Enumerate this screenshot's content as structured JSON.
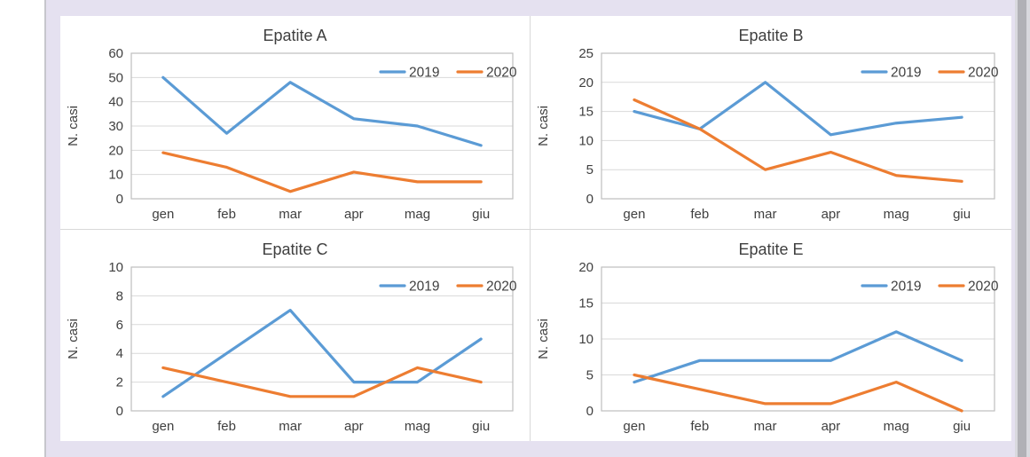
{
  "theme": {
    "panel_bg": "#e5e1f0",
    "cell_bg": "#ffffff",
    "divider_color": "#d9d9d9",
    "grid_color": "#d9d9d9",
    "plot_border_color": "#bfbfbf",
    "text_color": "#404040",
    "title_color": "#3f3f3f",
    "series_colors": {
      "2019": "#5B9BD5",
      "2020": "#ED7D31"
    }
  },
  "chart_data": [
    {
      "type": "line",
      "title": "Epatite A",
      "ylabel": "N. casi",
      "categories": [
        "gen",
        "feb",
        "mar",
        "apr",
        "mag",
        "giu"
      ],
      "ylim": [
        0,
        60
      ],
      "ytick": 10,
      "grid": true,
      "legend_position": "top-right",
      "series": [
        {
          "name": "2019",
          "color": "#5B9BD5",
          "values": [
            50,
            27,
            48,
            33,
            30,
            22
          ]
        },
        {
          "name": "2020",
          "color": "#ED7D31",
          "values": [
            19,
            13,
            3,
            11,
            7,
            7
          ]
        }
      ]
    },
    {
      "type": "line",
      "title": "Epatite B",
      "ylabel": "N. casi",
      "categories": [
        "gen",
        "feb",
        "mar",
        "apr",
        "mag",
        "giu"
      ],
      "ylim": [
        0,
        25
      ],
      "ytick": 5,
      "grid": true,
      "legend_position": "top-right",
      "series": [
        {
          "name": "2019",
          "color": "#5B9BD5",
          "values": [
            15,
            12,
            20,
            11,
            13,
            14
          ]
        },
        {
          "name": "2020",
          "color": "#ED7D31",
          "values": [
            17,
            12,
            5,
            8,
            4,
            3
          ]
        }
      ]
    },
    {
      "type": "line",
      "title": "Epatite C",
      "ylabel": "N. casi",
      "categories": [
        "gen",
        "feb",
        "mar",
        "apr",
        "mag",
        "giu"
      ],
      "ylim": [
        0,
        10
      ],
      "ytick": 2,
      "grid": true,
      "legend_position": "top-right",
      "series": [
        {
          "name": "2019",
          "color": "#5B9BD5",
          "values": [
            1,
            4,
            7,
            2,
            2,
            5
          ]
        },
        {
          "name": "2020",
          "color": "#ED7D31",
          "values": [
            3,
            2,
            1,
            1,
            3,
            2
          ]
        }
      ]
    },
    {
      "type": "line",
      "title": "Epatite E",
      "ylabel": "N. casi",
      "categories": [
        "gen",
        "feb",
        "mar",
        "apr",
        "mag",
        "giu"
      ],
      "ylim": [
        0,
        20
      ],
      "ytick": 5,
      "grid": true,
      "legend_position": "top-right",
      "series": [
        {
          "name": "2019",
          "color": "#5B9BD5",
          "values": [
            4,
            7,
            7,
            7,
            11,
            7
          ]
        },
        {
          "name": "2020",
          "color": "#ED7D31",
          "values": [
            5,
            3,
            1,
            1,
            4,
            0
          ]
        }
      ]
    }
  ]
}
